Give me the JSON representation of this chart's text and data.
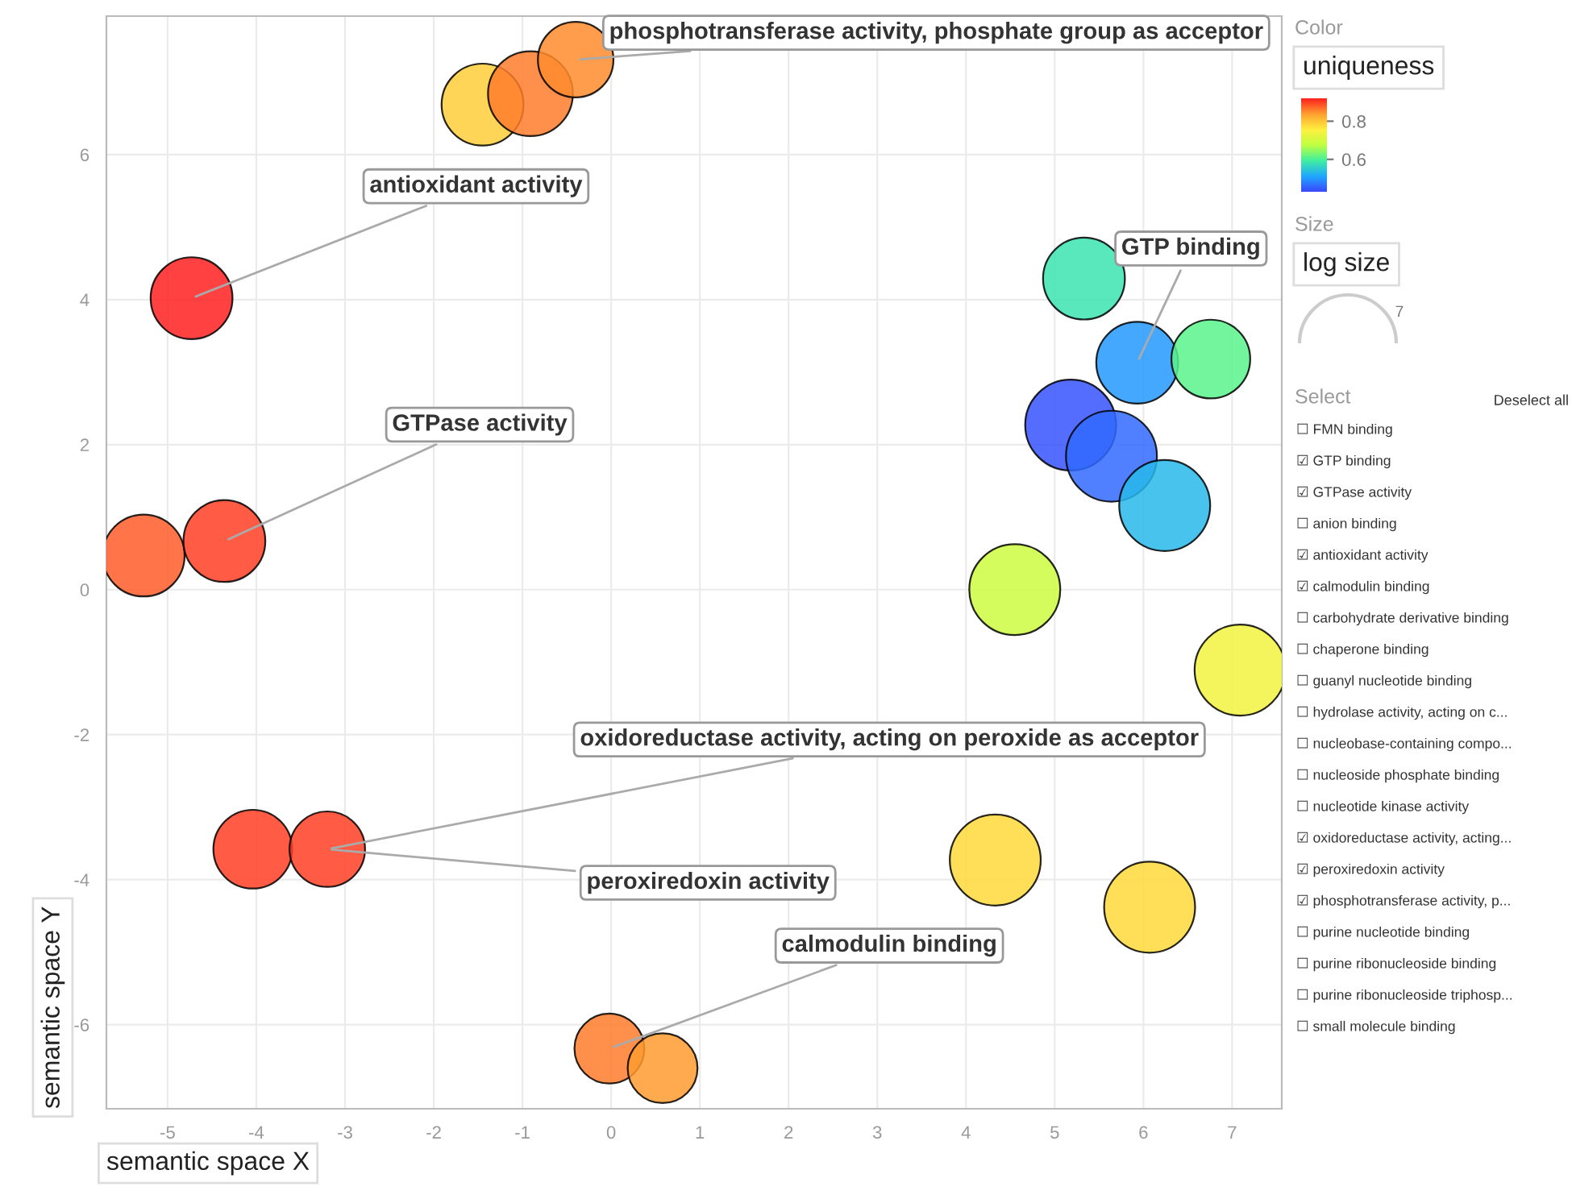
{
  "chart_data": [
    {
      "type": "bubble",
      "xlabel": "semantic space X",
      "ylabel": "semantic space Y",
      "clabel": "uniqueness",
      "x": [
        -1.45,
        -0.91,
        -0.4,
        -4.73,
        -5.27,
        -4.36,
        -4.04,
        -3.2,
        -0.02,
        0.58,
        4.33,
        6.07,
        7.09,
        4.55,
        5.33,
        5.93,
        6.76,
        5.18,
        5.64,
        6.24
      ],
      "values": [
        6.69,
        6.84,
        7.31,
        4.02,
        0.47,
        0.67,
        -3.58,
        -3.58,
        -6.33,
        -6.6,
        -3.73,
        -4.38,
        -1.11,
        0.0,
        4.29,
        3.13,
        3.18,
        2.27,
        1.84,
        1.16
      ],
      "sizes": [
        0.81,
        0.87,
        0.69,
        0.81,
        0.81,
        0.81,
        0.75,
        0.69,
        0.59,
        0.59,
        1,
        1,
        1,
        1,
        0.81,
        0.81,
        0.75,
        1,
        1,
        1
      ],
      "cvalues": [
        0.79,
        0.86,
        0.85,
        0.92,
        0.88,
        0.9,
        0.9,
        0.9,
        0.86,
        0.84,
        0.78,
        0.78,
        0.74,
        0.69,
        0.58,
        0.5,
        0.61,
        0.44,
        0.46,
        0.53
      ],
      "clim": [
        0.43,
        0.92
      ],
      "cticks": [
        0.6,
        0.8
      ],
      "xlim": [
        -5.69,
        7.56
      ],
      "ylim": [
        -7.16,
        7.91
      ],
      "xticks": [
        -5,
        -4,
        -3,
        -2,
        -1,
        0,
        1,
        2,
        3,
        4,
        5,
        6,
        7
      ],
      "yticks": [
        -6,
        -4,
        -2,
        0,
        2,
        4,
        6
      ],
      "grid": true,
      "legend": false,
      "annotations": [
        {
          "text": "phosphotransferase activity, phosphate group as acceptor",
          "x": -0.4,
          "y": 7.31
        },
        {
          "text": "antioxidant activity",
          "x": -4.73,
          "y": 4.02
        },
        {
          "text": "GTP binding",
          "x": 5.93,
          "y": 3.13
        },
        {
          "text": "GTPase activity",
          "x": -4.36,
          "y": 0.67
        },
        {
          "text": "oxidoreductase activity, acting on peroxide as acceptor",
          "x": -3.2,
          "y": -3.58
        },
        {
          "text": "peroxiredoxin activity",
          "x": -3.2,
          "y": -3.58
        },
        {
          "text": "calmodulin binding",
          "x": -0.02,
          "y": -6.33
        }
      ]
    },
    {
      "type": "other",
      "annotations": [
        "Color",
        "Size",
        "log size",
        "7",
        "Select",
        "Deselect all",
        "☐ FMN binding",
        "☑ GTP binding",
        "☑ GTPase activity",
        "☐ anion binding",
        "☑ antioxidant activity",
        "☑ calmodulin binding",
        "☐ carbohydrate derivative binding",
        "☐ chaperone binding",
        "☐ guanyl nucleotide binding",
        "☐ hydrolase activity, acting on c...",
        "☐ nucleobase-containing compo...",
        "☐ nucleoside phosphate binding",
        "☐ nucleotide kinase activity",
        "☑ oxidoreductase activity, acting...",
        "☑ peroxiredoxin activity",
        "☑ phosphotransferase activity, p...",
        "☐ purine nucleotide binding",
        "☐ purine ribonucleoside binding",
        "☐ purine ribonucleoside triphosp...",
        "☐ small molecule binding"
      ]
    }
  ]
}
